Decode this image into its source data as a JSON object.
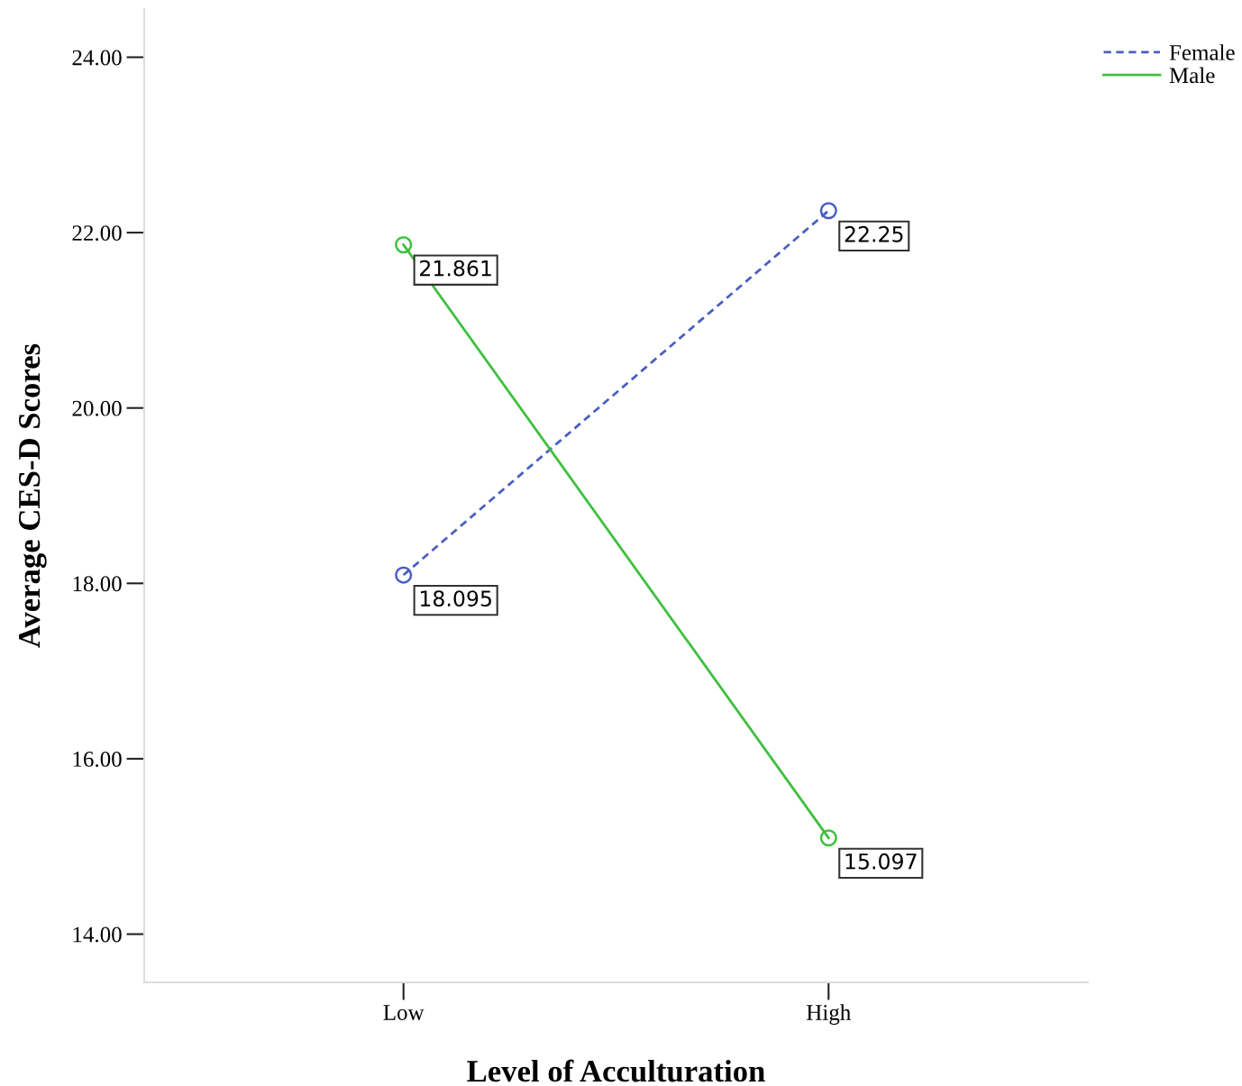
{
  "chart_data": {
    "type": "line",
    "xlabel": "Level of Acculturation",
    "ylabel": "Average CES-D Scores",
    "categories": [
      "Low",
      "High"
    ],
    "series": [
      {
        "name": "Female",
        "color": "#4a5fc1",
        "values": [
          18.095,
          22.25
        ],
        "line_style": "dashed"
      },
      {
        "name": "Male",
        "color": "#3fbf3f",
        "values": [
          21.861,
          15.097
        ],
        "line_style": "solid"
      }
    ],
    "ylim": [
      13.45,
      24.55
    ],
    "yticks": [
      {
        "value": 14,
        "label": "14.00"
      },
      {
        "value": 16,
        "label": "16.00"
      },
      {
        "value": 18,
        "label": "18.00"
      },
      {
        "value": 20,
        "label": "20.00"
      },
      {
        "value": 22,
        "label": "22.00"
      },
      {
        "value": 24,
        "label": "24.00"
      }
    ],
    "marker": "circle",
    "data_labels": true,
    "grid": false,
    "legend": "top right"
  }
}
